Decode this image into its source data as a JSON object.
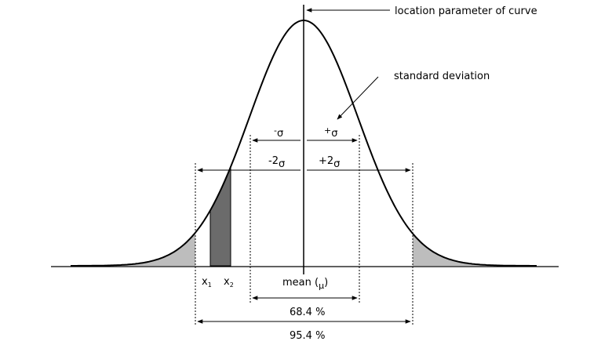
{
  "annotations": {
    "location": "location parameter of curve",
    "std_dev": "standard deviation"
  },
  "sigma_labels": {
    "minus_sigma_sign": "-",
    "plus_sigma_sign": "+",
    "minus_2sigma_sign": "-2",
    "plus_2sigma_sign": "+2",
    "sigma": "σ"
  },
  "x_labels": {
    "x1": "x",
    "x1_sub": "1",
    "x2": "x",
    "x2_sub": "2",
    "mean_prefix": "mean (",
    "mean_symbol": "μ",
    "mean_suffix": ")"
  },
  "percentages": {
    "one_sigma": "68.4 %",
    "two_sigma": "95.4 %"
  },
  "colors": {
    "tail_shade": "#bdbdbd",
    "interval_shade": "#6b6b6b",
    "ink": "#000000"
  }
}
